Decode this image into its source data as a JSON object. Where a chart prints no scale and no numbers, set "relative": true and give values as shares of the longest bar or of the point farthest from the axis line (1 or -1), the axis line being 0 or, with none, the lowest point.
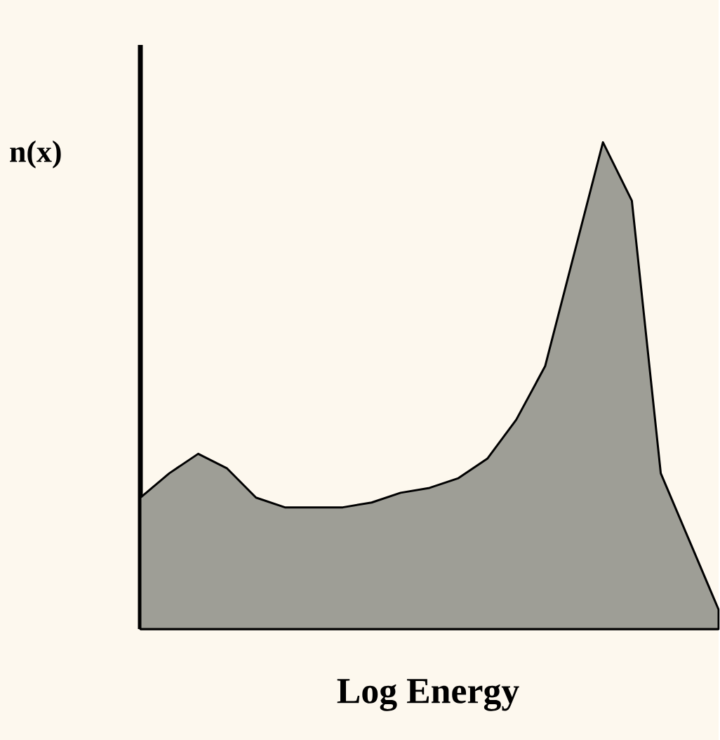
{
  "chart_data": {
    "type": "area",
    "relative": true,
    "ylabel": "n(x)",
    "xlabel": "Log Energy",
    "color": "#9e9e96",
    "categories": [
      null,
      null,
      null,
      null,
      null,
      null,
      null,
      null,
      null,
      null,
      null,
      null,
      null,
      null,
      null,
      null,
      null,
      null,
      null,
      null,
      null
    ],
    "values": [
      0.27,
      0.32,
      0.36,
      0.33,
      0.27,
      0.25,
      0.25,
      0.25,
      0.26,
      0.28,
      0.29,
      0.31,
      0.35,
      0.43,
      0.54,
      0.77,
      1.0,
      0.88,
      0.32,
      0.18,
      0.04
    ]
  }
}
